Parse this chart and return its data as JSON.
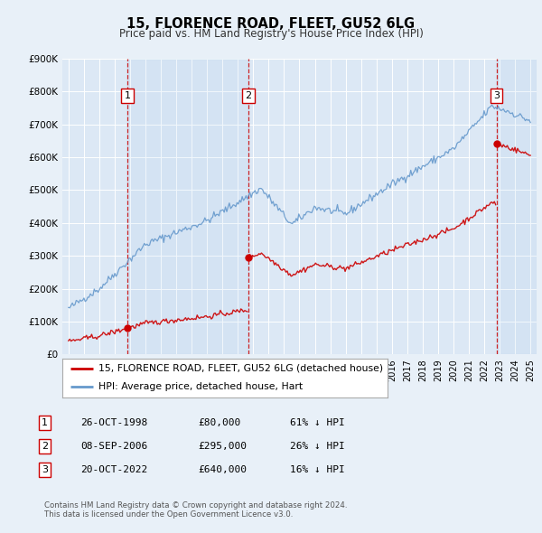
{
  "title": "15, FLORENCE ROAD, FLEET, GU52 6LG",
  "subtitle": "Price paid vs. HM Land Registry's House Price Index (HPI)",
  "bg_color": "#e8f0f8",
  "plot_bg_color": "#dce8f5",
  "red_line_color": "#cc0000",
  "blue_line_color": "#6699cc",
  "sale_marker_color": "#cc0000",
  "vline_color": "#cc0000",
  "ylim": [
    0,
    900000
  ],
  "yticks": [
    0,
    100000,
    200000,
    300000,
    400000,
    500000,
    600000,
    700000,
    800000,
    900000
  ],
  "ytick_labels": [
    "£0",
    "£100K",
    "£200K",
    "£300K",
    "£400K",
    "£500K",
    "£600K",
    "£700K",
    "£800K",
    "£900K"
  ],
  "xlim_start": 1994.6,
  "xlim_end": 2025.4,
  "sales": [
    {
      "date_num": 1998.82,
      "price": 80000,
      "label": "1"
    },
    {
      "date_num": 2006.69,
      "price": 295000,
      "label": "2"
    },
    {
      "date_num": 2022.8,
      "price": 640000,
      "label": "3"
    }
  ],
  "legend_entries": [
    {
      "label": "15, FLORENCE ROAD, FLEET, GU52 6LG (detached house)",
      "color": "#cc0000"
    },
    {
      "label": "HPI: Average price, detached house, Hart",
      "color": "#6699cc"
    }
  ],
  "table_rows": [
    {
      "num": "1",
      "date": "26-OCT-1998",
      "price": "£80,000",
      "hpi": "61% ↓ HPI"
    },
    {
      "num": "2",
      "date": "08-SEP-2006",
      "price": "£295,000",
      "hpi": "26% ↓ HPI"
    },
    {
      "num": "3",
      "date": "20-OCT-2022",
      "price": "£640,000",
      "hpi": "16% ↓ HPI"
    }
  ],
  "footer": "Contains HM Land Registry data © Crown copyright and database right 2024.\nThis data is licensed under the Open Government Licence v3.0."
}
